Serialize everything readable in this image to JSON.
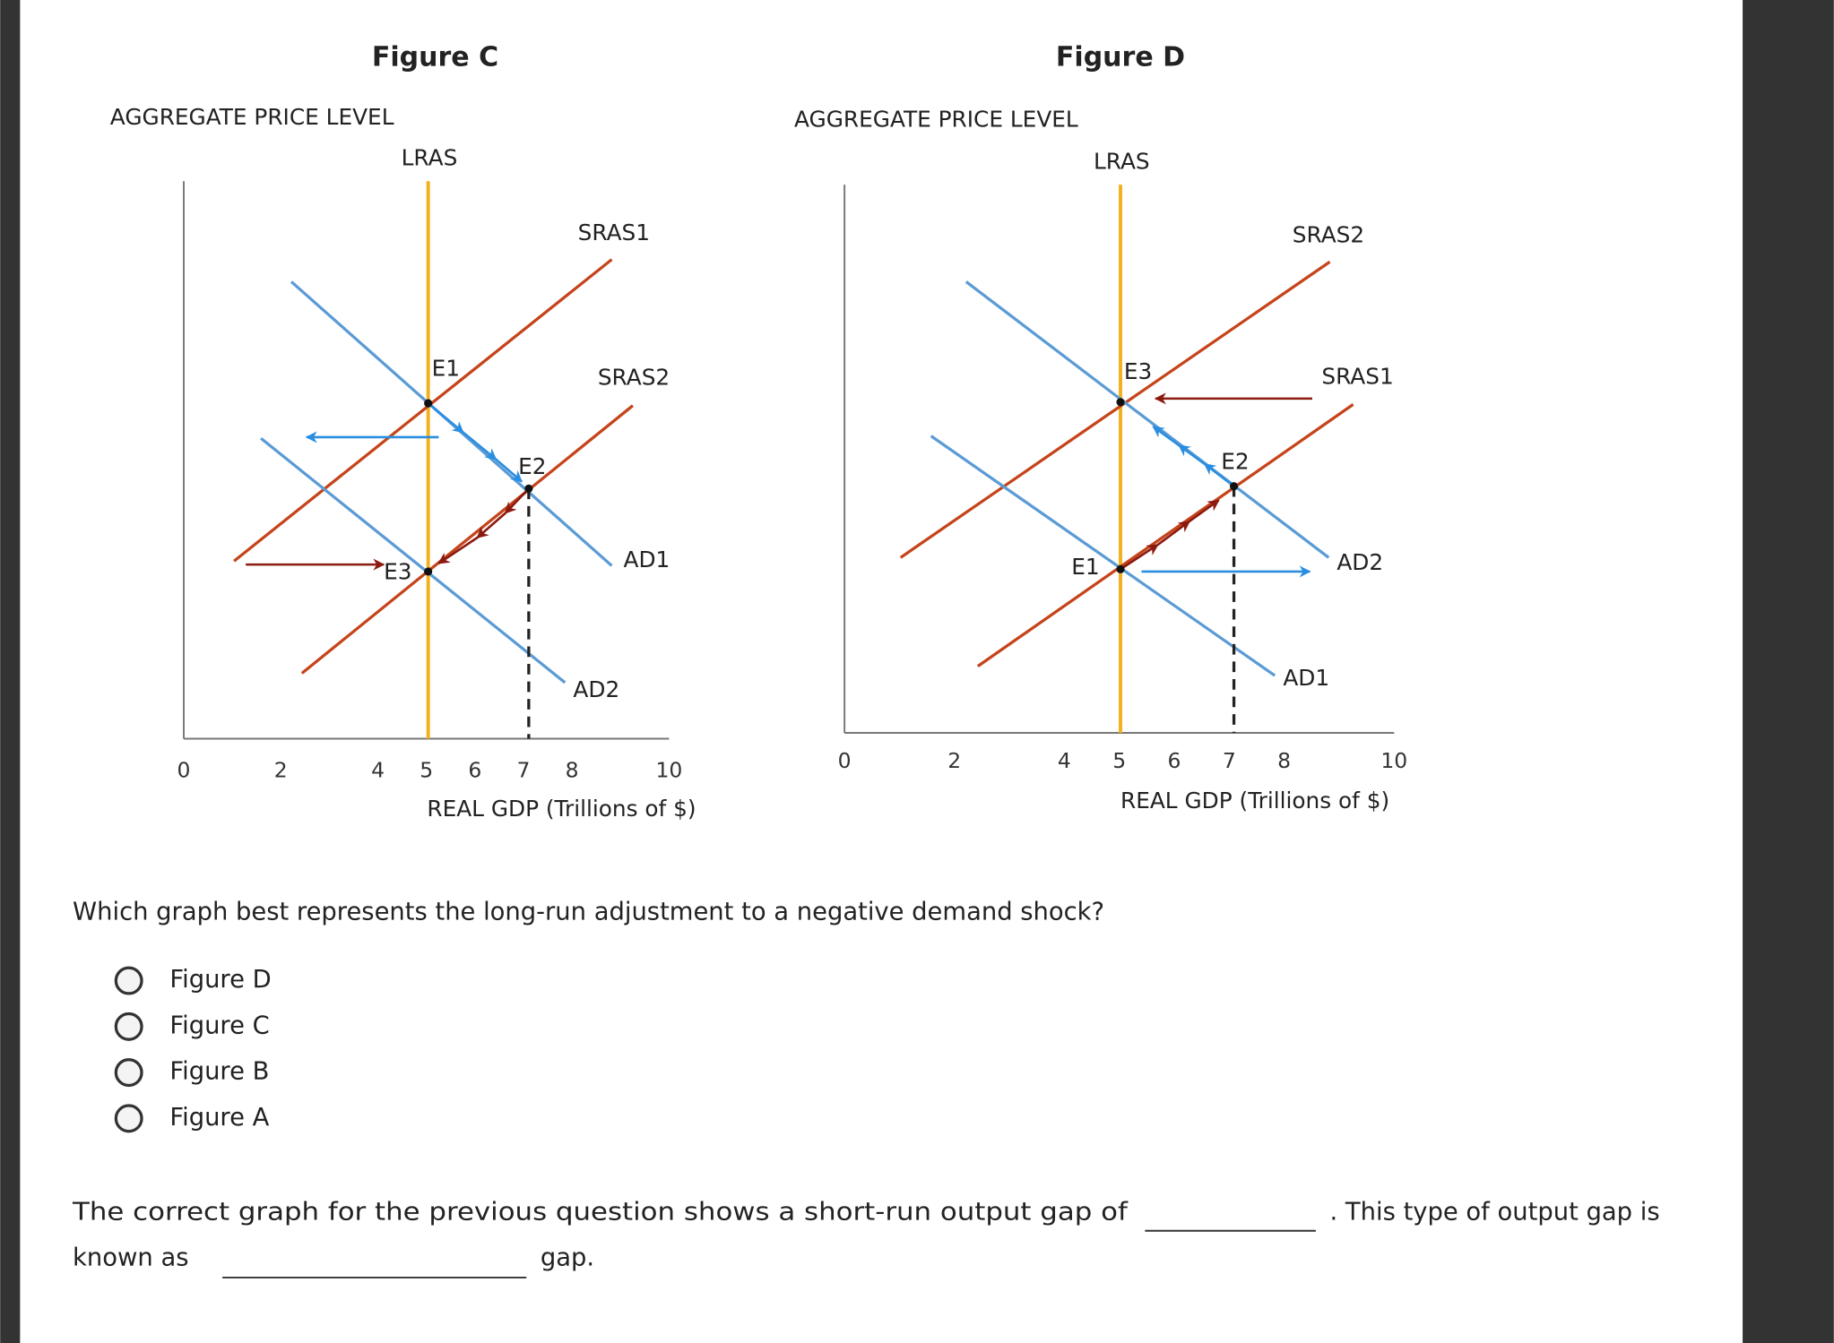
{
  "figures": [
    {
      "title": "Figure C",
      "y_axis_label": "AGGREGATE PRICE LEVEL",
      "x_axis_label": "REAL GDP (Trillions of $)",
      "xticks": [
        0,
        2,
        4,
        5,
        6,
        7,
        8,
        10
      ],
      "labels": [
        "LRAS",
        "SRAS1",
        "SRAS2",
        "AD1",
        "AD2",
        "E1",
        "E2",
        "E3"
      ]
    },
    {
      "title": "Figure D",
      "y_axis_label": "AGGREGATE PRICE LEVEL",
      "x_axis_label": "REAL GDP (Trillions of $)",
      "xticks": [
        0,
        2,
        4,
        5,
        6,
        7,
        8,
        10
      ],
      "labels": [
        "LRAS",
        "SRAS2",
        "SRAS1",
        "AD2",
        "AD1",
        "E3",
        "E2",
        "E1"
      ]
    }
  ],
  "question": {
    "text": "Which graph best represents the long-run adjustment to a negative demand shock?",
    "options": [
      "Figure D",
      "Figure C",
      "Figure B",
      "Figure A"
    ]
  },
  "followup": {
    "line1_start": "The correct graph for the previous question shows a short-run output gap of",
    "line1_end": ". This type of output gap is",
    "line2_start": "known as",
    "line2_end": "gap."
  }
}
